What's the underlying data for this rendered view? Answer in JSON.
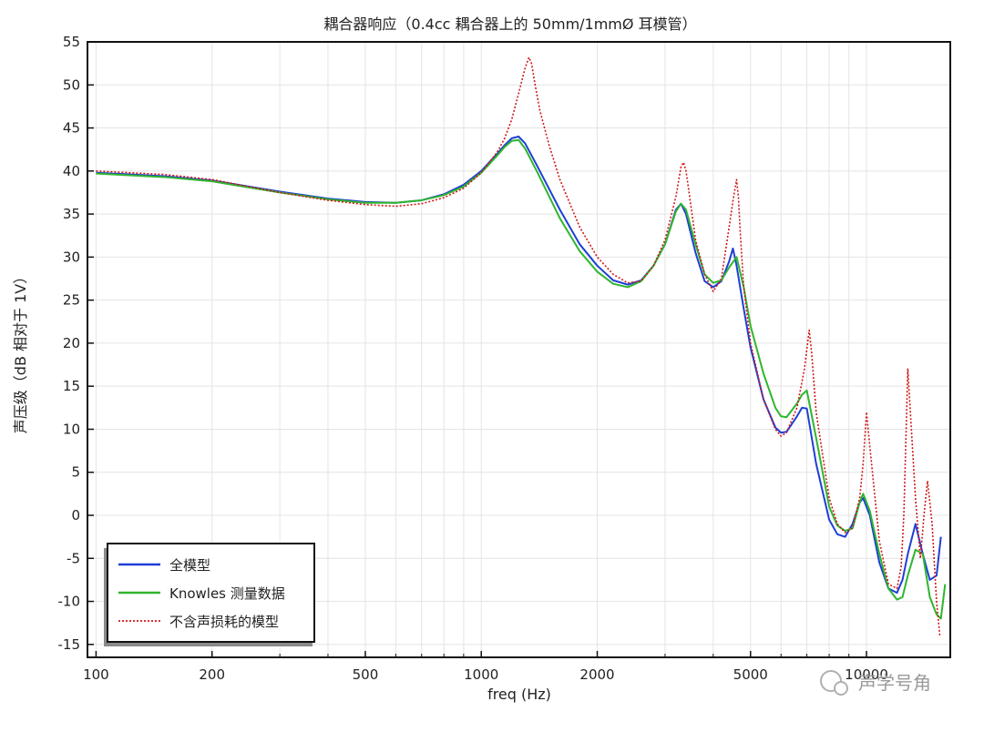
{
  "chart_data": {
    "type": "line",
    "title": "耦合器响应（0.4cc 耦合器上的 50mm/1mmØ 耳模管）",
    "xlabel": "freq (Hz)",
    "ylabel": "声压级（dB 相对于 1V）",
    "x_scale": "log",
    "xlim": [
      95,
      16500
    ],
    "ylim": [
      -16.5,
      55
    ],
    "x_ticks": [
      100,
      200,
      500,
      1000,
      2000,
      5000,
      10000
    ],
    "x_tick_labels": [
      "100",
      "200",
      "500",
      "1000",
      "2000",
      "5000",
      "10000"
    ],
    "y_ticks": [
      -15,
      -10,
      -5,
      0,
      5,
      10,
      15,
      20,
      25,
      30,
      35,
      40,
      45,
      50,
      55
    ],
    "y_tick_labels": [
      "-15",
      "-10",
      "-5",
      "0",
      "5",
      "10",
      "15",
      "20",
      "25",
      "30",
      "35",
      "40",
      "45",
      "50",
      "55"
    ],
    "grid": true,
    "legend_position": "bottom-left",
    "series": [
      {
        "name": "全模型",
        "color": "#1f3fd6",
        "style": "solid",
        "x": [
          100,
          150,
          200,
          300,
          400,
          500,
          600,
          700,
          800,
          900,
          1000,
          1100,
          1150,
          1200,
          1250,
          1300,
          1400,
          1600,
          1800,
          2000,
          2200,
          2400,
          2600,
          2800,
          3000,
          3200,
          3300,
          3400,
          3600,
          3800,
          4000,
          4200,
          4400,
          4500,
          4600,
          4800,
          5000,
          5400,
          5800,
          6000,
          6200,
          6600,
          6800,
          7000,
          7400,
          8000,
          8400,
          8800,
          9200,
          9600,
          9800,
          10200,
          10800,
          11400,
          12000,
          12400,
          12800,
          13400,
          14000,
          14600,
          15200,
          15600
        ],
        "y": [
          39.8,
          39.4,
          38.9,
          37.6,
          36.8,
          36.4,
          36.3,
          36.6,
          37.3,
          38.4,
          40.0,
          42.0,
          43.0,
          43.8,
          44.0,
          43.2,
          40.5,
          35.5,
          31.5,
          29.0,
          27.3,
          26.8,
          27.3,
          29.0,
          31.5,
          35.5,
          36.2,
          35.0,
          30.5,
          27.2,
          26.5,
          27.2,
          29.5,
          31.0,
          29.0,
          24.0,
          19.5,
          13.5,
          10.2,
          9.6,
          9.7,
          11.5,
          12.5,
          12.4,
          6.0,
          -0.5,
          -2.2,
          -2.5,
          -1.0,
          1.5,
          2.0,
          0.0,
          -5.5,
          -8.5,
          -9.0,
          -7.5,
          -4.5,
          -1.0,
          -4.5,
          -7.5,
          -7.0,
          -2.5
        ]
      },
      {
        "name": "Knowles 测量数据",
        "color": "#2fb52f",
        "style": "solid",
        "x": [
          100,
          150,
          200,
          300,
          400,
          500,
          600,
          700,
          800,
          900,
          1000,
          1100,
          1150,
          1200,
          1250,
          1300,
          1400,
          1600,
          1800,
          2000,
          2200,
          2400,
          2600,
          2800,
          3000,
          3200,
          3300,
          3400,
          3600,
          3800,
          4000,
          4200,
          4400,
          4600,
          4800,
          5000,
          5400,
          5800,
          6000,
          6200,
          6600,
          6800,
          7000,
          7400,
          8000,
          8400,
          8800,
          9200,
          9600,
          9800,
          10200,
          10800,
          11400,
          12000,
          12400,
          12800,
          13400,
          14000,
          14600,
          15200,
          15600,
          16000
        ],
        "y": [
          39.7,
          39.3,
          38.8,
          37.5,
          36.7,
          36.3,
          36.3,
          36.6,
          37.2,
          38.2,
          39.8,
          41.8,
          42.8,
          43.5,
          43.6,
          42.6,
          39.8,
          34.5,
          30.7,
          28.3,
          26.9,
          26.5,
          27.2,
          29.0,
          31.5,
          35.3,
          36.2,
          35.5,
          31.5,
          28.0,
          27.0,
          27.3,
          28.8,
          30.0,
          26.5,
          22.0,
          16.5,
          12.5,
          11.5,
          11.4,
          13.0,
          14.0,
          14.5,
          9.0,
          1.0,
          -1.2,
          -1.8,
          -1.5,
          1.5,
          2.5,
          0.5,
          -4.5,
          -8.5,
          -9.8,
          -9.5,
          -7.0,
          -4.0,
          -4.5,
          -9.5,
          -11.5,
          -12.0,
          -8.0
        ]
      },
      {
        "name": "不含声损耗的模型",
        "color": "#d01818",
        "style": "dotted",
        "x": [
          100,
          150,
          200,
          300,
          400,
          500,
          600,
          700,
          800,
          900,
          1000,
          1100,
          1150,
          1200,
          1250,
          1300,
          1330,
          1350,
          1380,
          1420,
          1500,
          1600,
          1800,
          2000,
          2200,
          2400,
          2600,
          2800,
          3000,
          3200,
          3300,
          3350,
          3400,
          3450,
          3600,
          3800,
          4000,
          4200,
          4400,
          4500,
          4600,
          4650,
          4700,
          4800,
          5000,
          5400,
          5800,
          6000,
          6200,
          6600,
          6900,
          7100,
          7200,
          7400,
          8000,
          8400,
          8800,
          9200,
          9600,
          9800,
          10000,
          10200,
          10800,
          11400,
          12000,
          12300,
          12500,
          12800,
          13400,
          13800,
          14100,
          14400,
          14800,
          15200,
          15500
        ],
        "y": [
          40.0,
          39.6,
          39.0,
          37.5,
          36.6,
          36.1,
          35.9,
          36.2,
          36.9,
          38.0,
          39.8,
          42.2,
          43.8,
          46.0,
          49.0,
          52.0,
          53.2,
          52.5,
          50.0,
          47.0,
          43.0,
          39.0,
          33.5,
          30.0,
          28.0,
          27.0,
          27.2,
          29.0,
          32.0,
          37.0,
          40.5,
          41.0,
          40.0,
          38.0,
          32.0,
          28.0,
          26.0,
          27.5,
          33.5,
          36.5,
          39.0,
          37.0,
          33.0,
          26.5,
          20.0,
          13.5,
          10.0,
          9.2,
          9.6,
          12.5,
          17.0,
          21.5,
          19.0,
          12.0,
          2.0,
          -1.0,
          -2.0,
          -1.5,
          2.0,
          6.0,
          12.0,
          8.0,
          -3.0,
          -8.0,
          -8.5,
          -6.0,
          0.0,
          17.0,
          2.0,
          -5.0,
          0.0,
          4.0,
          -1.0,
          -10.0,
          -14.0
        ]
      }
    ]
  },
  "watermark": {
    "text": "声学号角"
  }
}
